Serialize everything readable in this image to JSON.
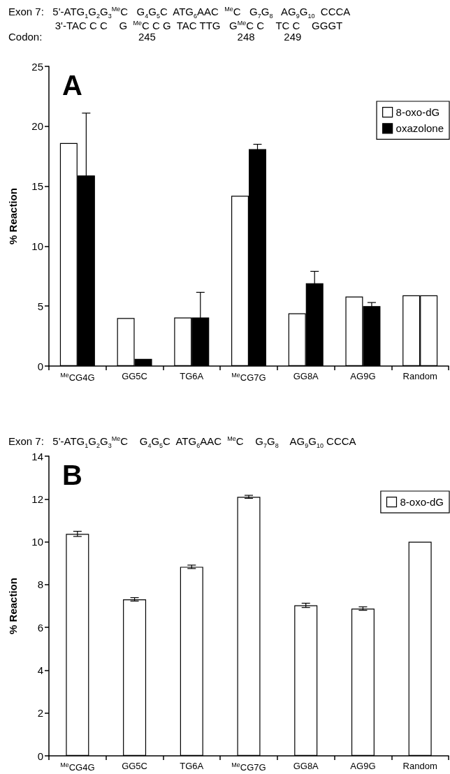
{
  "chart_data": [
    {
      "type": "bar",
      "title": "A",
      "ylabel": "% Reaction",
      "annotations": [
        "Exon 7:   5'-ATG$_{1}$G$_{2}$G$_{3}$$^{Me}$C   G$_{4}$G$_{5}$C  ATG$_{6}$AAC  $^{Me}$C   G$_{7}$G$_{8}$   AG$_{9}$G$_{10}$  CCCA",
        "                3'-TAC C C    G  $^{Me}$C C G  TAC TTG   G$^{Me}$C C    TC C    GGGT",
        "Codon:                                 245                            248          249"
      ],
      "categories": [
        "$^{Me}$CG4G",
        "GG5C",
        "TG6A",
        "$^{Me}$CG7G",
        "GG8A",
        "AG9G",
        "Random"
      ],
      "series": [
        {
          "name": "8-oxo-dG",
          "color": "#ffffff",
          "values": [
            18.6,
            4.0,
            4.05,
            14.2,
            4.4,
            5.8,
            5.9
          ]
        },
        {
          "name": "oxazolone",
          "color": "#000000",
          "colors": [
            "#000000",
            "#000000",
            "#000000",
            "#000000",
            "#000000",
            "#000000",
            "#ffffff"
          ],
          "values": [
            15.9,
            0.6,
            4.05,
            18.1,
            6.9,
            5.0,
            5.9
          ],
          "errors": [
            5.2,
            null,
            2.1,
            0.4,
            1.0,
            0.3,
            null
          ]
        }
      ],
      "ylim": [
        0,
        25
      ],
      "yticks": [
        0,
        5,
        10,
        15,
        20,
        25
      ],
      "grid": false,
      "legend": "top right"
    },
    {
      "type": "bar",
      "title": "B",
      "ylabel": "% Reaction",
      "annotations": [
        "Exon 7:   5'-ATG$_{1}$G$_{2}$G$_{3}$$^{Me}$C    G$_{4}$G$_{5}$C  ATG$_{6}$AAC  $^{Me}$C    G$_{7}$G$_{8}$    AG$_{9}$G$_{10}$ CCCA"
      ],
      "categories": [
        "$^{Me}$CG4G",
        "GG5C",
        "TG6A",
        "$^{Me}$CG7G",
        "GG8A",
        "AG9G",
        "Random"
      ],
      "series": [
        {
          "name": "8-oxo-dG",
          "color": "#ffffff",
          "values": [
            10.37,
            7.31,
            8.83,
            12.1,
            7.03,
            6.88,
            10.0
          ],
          "errors": [
            0.12,
            0.08,
            0.08,
            0.07,
            0.1,
            0.08,
            null
          ]
        }
      ],
      "ylim": [
        0,
        14
      ],
      "yticks": [
        0,
        2,
        4,
        6,
        8,
        10,
        12,
        14
      ],
      "grid": false,
      "legend": "top right"
    }
  ]
}
